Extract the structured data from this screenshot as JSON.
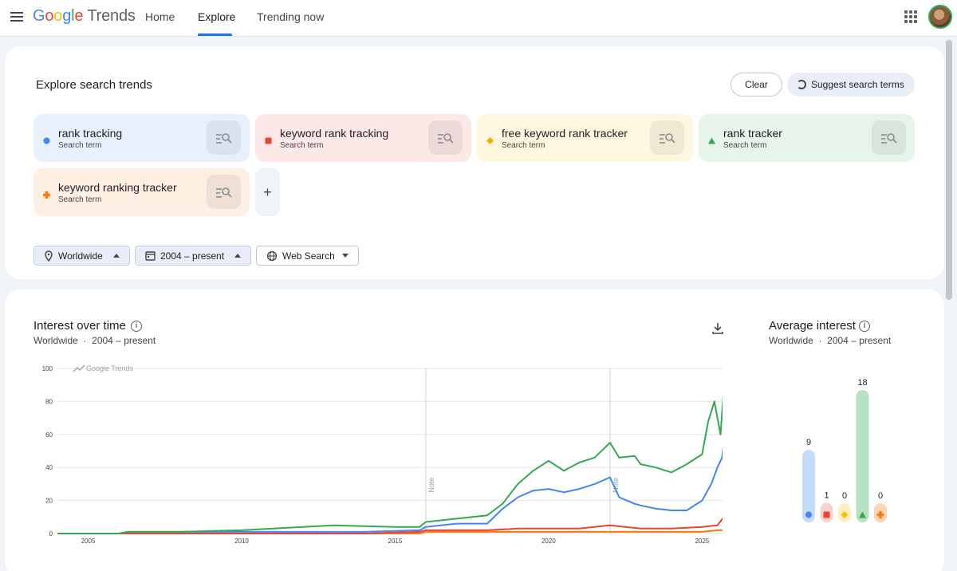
{
  "header": {
    "logo_letters": [
      "G",
      "o",
      "o",
      "g",
      "l",
      "e"
    ],
    "logo_suffix": "Trends",
    "nav": [
      "Home",
      "Explore",
      "Trending now"
    ]
  },
  "explore": {
    "title": "Explore search trends",
    "clear_label": "Clear",
    "suggest_label": "Suggest search terms",
    "terms": [
      {
        "name": "rank tracking",
        "sub": "Search term",
        "color": "#4285f4",
        "bg": "#e8f0fe",
        "shape": "circle"
      },
      {
        "name": "keyword rank tracking",
        "sub": "Search term",
        "color": "#ea4335",
        "bg": "#fce8e6",
        "shape": "square"
      },
      {
        "name": "free keyword rank tracker",
        "sub": "Search term",
        "color": "#f9ab00",
        "bg": "#fef7e0",
        "shape": "diamond"
      },
      {
        "name": "rank tracker",
        "sub": "Search term",
        "color": "#34a853",
        "bg": "#e6f4ea",
        "shape": "triangle"
      },
      {
        "name": "keyword ranking tracker",
        "sub": "Search term",
        "color": "#fa7b17",
        "bg": "#feefe3",
        "shape": "cross"
      }
    ],
    "add_label": "+",
    "filters": {
      "region": "Worldwide",
      "time": "2004 – present",
      "property": "Web Search"
    }
  },
  "interest": {
    "title": "Interest over time",
    "subtitle_region": "Worldwide",
    "subtitle_sep": "·",
    "subtitle_time": "2004 – present",
    "watermark": "Google Trends",
    "note_label": "Note"
  },
  "average": {
    "title": "Average interest",
    "subtitle_region": "Worldwide",
    "subtitle_sep": "·",
    "subtitle_time": "2004 – present"
  },
  "chart_data": [
    {
      "type": "line",
      "title": "Interest over time",
      "ylim": [
        0,
        100
      ],
      "yticks": [
        0,
        20,
        40,
        60,
        80,
        100
      ],
      "xticks": [
        "2005",
        "2010",
        "2015",
        "2020",
        "2025"
      ],
      "x_range": [
        2004,
        2025.9
      ],
      "annotations": [
        {
          "x": 2016.0,
          "label": "Note"
        },
        {
          "x": 2022.0,
          "label": "Note"
        }
      ],
      "grid": true,
      "series": [
        {
          "name": "rank tracker",
          "color": "#34a853",
          "points": [
            [
              2004,
              0
            ],
            [
              2006,
              0
            ],
            [
              2006.3,
              1
            ],
            [
              2008,
              1
            ],
            [
              2010,
              2
            ],
            [
              2012,
              4
            ],
            [
              2013,
              5
            ],
            [
              2015,
              4
            ],
            [
              2015.8,
              4
            ],
            [
              2016,
              7
            ],
            [
              2017,
              9
            ],
            [
              2018,
              11
            ],
            [
              2018.5,
              18
            ],
            [
              2019,
              30
            ],
            [
              2019.5,
              38
            ],
            [
              2020,
              44
            ],
            [
              2020.5,
              38
            ],
            [
              2021,
              43
            ],
            [
              2021.5,
              46
            ],
            [
              2022,
              55
            ],
            [
              2022.3,
              46
            ],
            [
              2022.8,
              47
            ],
            [
              2023,
              42
            ],
            [
              2023.5,
              40
            ],
            [
              2024,
              37
            ],
            [
              2024.5,
              42
            ],
            [
              2025,
              48
            ],
            [
              2025.2,
              68
            ],
            [
              2025.4,
              80
            ],
            [
              2025.6,
              60
            ],
            [
              2025.75,
              99
            ],
            [
              2025.85,
              86
            ]
          ]
        },
        {
          "name": "rank tracking",
          "color": "#4285f4",
          "points": [
            [
              2004,
              0
            ],
            [
              2006,
              0
            ],
            [
              2006.3,
              1
            ],
            [
              2008,
              1
            ],
            [
              2010,
              1
            ],
            [
              2012,
              1
            ],
            [
              2014,
              1
            ],
            [
              2015.8,
              2
            ],
            [
              2016,
              4
            ],
            [
              2017,
              6
            ],
            [
              2018,
              6
            ],
            [
              2018.5,
              15
            ],
            [
              2019,
              22
            ],
            [
              2019.5,
              26
            ],
            [
              2020,
              27
            ],
            [
              2020.5,
              25
            ],
            [
              2021,
              27
            ],
            [
              2021.5,
              30
            ],
            [
              2022,
              34
            ],
            [
              2022.3,
              22
            ],
            [
              2022.8,
              18
            ],
            [
              2023,
              17
            ],
            [
              2023.5,
              15
            ],
            [
              2024,
              14
            ],
            [
              2024.5,
              14
            ],
            [
              2025,
              20
            ],
            [
              2025.3,
              30
            ],
            [
              2025.5,
              40
            ],
            [
              2025.65,
              46
            ],
            [
              2025.75,
              62
            ],
            [
              2025.85,
              48
            ]
          ]
        },
        {
          "name": "keyword rank tracking",
          "color": "#ea4335",
          "points": [
            [
              2004,
              0
            ],
            [
              2014,
              0
            ],
            [
              2015.8,
              1
            ],
            [
              2016,
              2
            ],
            [
              2017,
              2
            ],
            [
              2018,
              2
            ],
            [
              2019,
              3
            ],
            [
              2020,
              3
            ],
            [
              2021,
              3
            ],
            [
              2022,
              5
            ],
            [
              2023,
              3
            ],
            [
              2024,
              3
            ],
            [
              2025,
              4
            ],
            [
              2025.5,
              5
            ],
            [
              2025.75,
              11
            ],
            [
              2025.85,
              9
            ]
          ]
        },
        {
          "name": "free keyword rank tracker",
          "color": "#fbbc04",
          "points": [
            [
              2004,
              0
            ],
            [
              2015.8,
              0
            ],
            [
              2016,
              1
            ],
            [
              2018,
              1
            ],
            [
              2020,
              1
            ],
            [
              2022,
              1
            ],
            [
              2024,
              1
            ],
            [
              2025,
              1
            ],
            [
              2025.5,
              2
            ],
            [
              2025.85,
              2
            ]
          ]
        },
        {
          "name": "keyword ranking tracker",
          "color": "#fa7b17",
          "points": [
            [
              2004,
              0
            ],
            [
              2015.8,
              0
            ],
            [
              2016,
              1
            ],
            [
              2018,
              1
            ],
            [
              2020,
              1
            ],
            [
              2022,
              1
            ],
            [
              2024,
              1
            ],
            [
              2025,
              1
            ],
            [
              2025.5,
              2
            ],
            [
              2025.85,
              2
            ]
          ]
        }
      ]
    },
    {
      "type": "bar",
      "title": "Average interest",
      "categories": [
        "rank tracking",
        "keyword rank tracking",
        "free keyword rank tracker",
        "rank tracker",
        "keyword ranking tracker"
      ],
      "values": [
        9,
        1,
        0,
        18,
        0
      ],
      "labels": [
        "9",
        "1",
        "0",
        "18",
        "0"
      ],
      "colors": [
        "#4285f4",
        "#ea4335",
        "#fbbc04",
        "#34a853",
        "#fa7b17"
      ],
      "bar_colors": [
        "#c6dafc",
        "#f9d2ce",
        "#feefc3",
        "#b7e1c1",
        "#fcd5b5"
      ],
      "ylim": [
        0,
        18
      ]
    }
  ]
}
